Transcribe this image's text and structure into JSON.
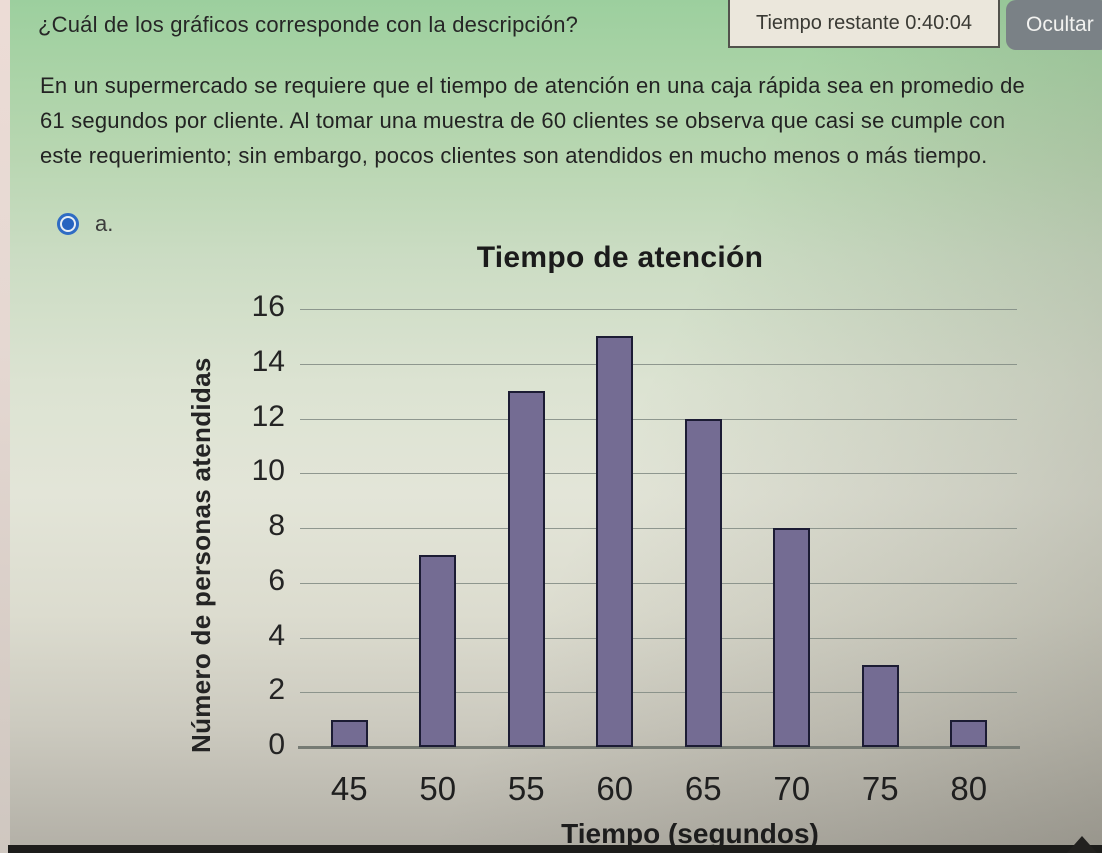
{
  "header": {
    "question": "¿Cuál de los gráficos corresponde con la descripción?",
    "timer_label": "Tiempo restante 0:40:04",
    "hide_button": "Ocultar"
  },
  "description": "En un supermercado se requiere que el tiempo de atención en una caja rápida sea en promedio de 61 segundos por cliente. Al tomar una muestra de 60 clientes se observa que casi se cumple con este requerimiento; sin embargo, pocos clientes son atendidos en mucho menos o más tiempo.",
  "option": {
    "label": "a.",
    "selected": true
  },
  "chart_data": {
    "type": "bar",
    "title": "Tiempo de atención",
    "xlabel": "Tiempo (segundos)",
    "ylabel": "Número de personas atendidas",
    "categories": [
      "45",
      "50",
      "55",
      "60",
      "65",
      "70",
      "75",
      "80"
    ],
    "values": [
      1,
      7,
      13,
      15,
      12,
      8,
      3,
      1
    ],
    "ylim": [
      0,
      16
    ],
    "ytick_step": 2,
    "grid": true,
    "legend": "none",
    "bar_fill": "#746c93",
    "bar_border": "#1c1c34"
  },
  "colors": {
    "background_top_green": "#a3d1a2",
    "background_bottom_gray": "#b2afa6",
    "radio_accent": "#2f6cc4",
    "hide_button_bg": "#7a8186",
    "timer_box_bg": "#ebe7dc",
    "gridline": "#808a82",
    "text": "#232323"
  }
}
